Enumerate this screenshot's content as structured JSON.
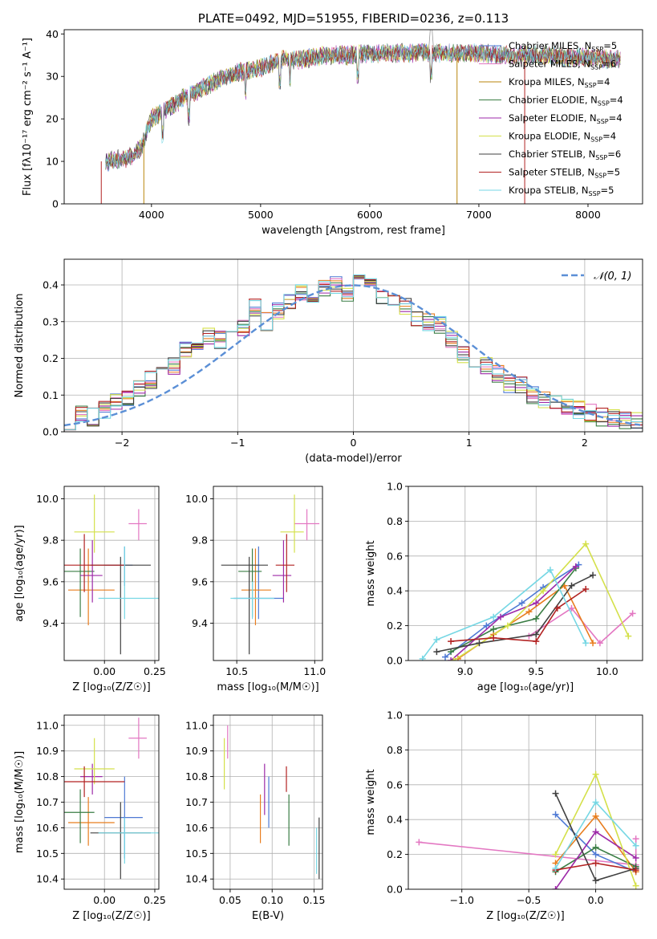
{
  "chart_data": [
    {
      "id": "spectrum",
      "type": "line",
      "title": "PLATE=0492, MJD=51955, FIBERID=0236, z=0.113",
      "xlabel": "wavelength [Angstrom, rest frame]",
      "ylabel": "Flux [fλ10⁻¹⁷ erg cm⁻² s⁻¹ A⁻¹]",
      "xlim": [
        3200,
        8500
      ],
      "ylim": [
        0,
        41
      ],
      "xticks": [
        "4000",
        "5000",
        "6000",
        "7000",
        "8000"
      ],
      "yticks": [
        "0",
        "10",
        "20",
        "30",
        "40"
      ],
      "grid": false,
      "legend_position": "top-right",
      "continuum": {
        "x": [
          3600,
          3800,
          3900,
          4000,
          4300,
          4600,
          4800,
          5000,
          5200,
          5400,
          5600,
          5800,
          6000,
          6200,
          6400,
          6600,
          6800,
          7000,
          7200,
          7400,
          7600,
          7800,
          8000,
          8200,
          8300
        ],
        "y": [
          10,
          11,
          13,
          20,
          25,
          29,
          31,
          32,
          34,
          34,
          35,
          35,
          35.5,
          35.5,
          35.5,
          35.5,
          35.5,
          35.5,
          35,
          35,
          35,
          34.5,
          34.5,
          34,
          34
        ]
      },
      "series": [
        {
          "name": "Chabrier MILES, N_SSP=5",
          "color": "#4e79d4"
        },
        {
          "name": "Salpeter MILES, N_SSP=6",
          "color": "#e377c2"
        },
        {
          "name": "Kroupa MILES, N_SSP=4",
          "color": "#b8860b"
        },
        {
          "name": "Chabrier ELODIE, N_SSP=4",
          "color": "#3a7d44"
        },
        {
          "name": "Salpeter ELODIE, N_SSP=4",
          "color": "#9d2aa8"
        },
        {
          "name": "Kroupa ELODIE, N_SSP=4",
          "color": "#d4e04a"
        },
        {
          "name": "Chabrier STELIB, N_SSP=6",
          "color": "#404040"
        },
        {
          "name": "Salpeter STELIB, N_SSP=5",
          "color": "#b22222"
        },
        {
          "name": "Kroupa STELIB, N_SSP=5",
          "color": "#76d7e4"
        }
      ]
    },
    {
      "id": "residuals",
      "type": "line",
      "xlabel": "(data-model)/error",
      "ylabel": "Normed distribution",
      "xlim": [
        -2.5,
        2.5
      ],
      "ylim": [
        0,
        0.47
      ],
      "xticks": [
        "−2",
        "−1",
        "0",
        "1",
        "2"
      ],
      "yticks": [
        "0.0",
        "0.1",
        "0.2",
        "0.3",
        "0.4"
      ],
      "grid": true,
      "legend_position": "top-right",
      "legend_label": "𝒩(0, 1)",
      "bin_width": 0.1,
      "sample_histogram": {
        "bin_centers": [
          -2.45,
          -2.35,
          -2.25,
          -2.15,
          -2.05,
          -1.95,
          -1.85,
          -1.75,
          -1.65,
          -1.55,
          -1.45,
          -1.35,
          -1.25,
          -1.15,
          -1.05,
          -0.95,
          -0.85,
          -0.75,
          -0.65,
          -0.55,
          -0.45,
          -0.35,
          -0.25,
          -0.15,
          -0.05,
          0.05,
          0.15,
          0.25,
          0.35,
          0.45,
          0.55,
          0.65,
          0.75,
          0.85,
          0.95,
          1.05,
          1.15,
          1.25,
          1.35,
          1.45,
          1.55,
          1.65,
          1.75,
          1.85,
          1.95,
          2.05,
          2.15,
          2.25,
          2.35,
          2.45
        ],
        "values": [
          0.03,
          0.05,
          0.04,
          0.06,
          0.08,
          0.09,
          0.12,
          0.14,
          0.16,
          0.18,
          0.22,
          0.22,
          0.26,
          0.25,
          0.27,
          0.28,
          0.34,
          0.3,
          0.33,
          0.35,
          0.38,
          0.36,
          0.39,
          0.4,
          0.38,
          0.42,
          0.4,
          0.37,
          0.36,
          0.34,
          0.31,
          0.3,
          0.29,
          0.25,
          0.21,
          0.2,
          0.18,
          0.16,
          0.13,
          0.13,
          0.1,
          0.09,
          0.08,
          0.07,
          0.06,
          0.05,
          0.04,
          0.04,
          0.03,
          0.03
        ]
      }
    },
    {
      "id": "age_vs_Z",
      "type": "scatter",
      "xlabel": "Z [log₁₀(Z/Z☉)]",
      "ylabel": "age  [log₁₀(age/yr)]",
      "xlim": [
        -0.2,
        0.27
      ],
      "ylim": [
        9.22,
        10.06
      ],
      "xticks": [
        "0.00",
        "0.25"
      ],
      "yticks": [
        "9.4",
        "9.6",
        "9.8",
        "10.0"
      ],
      "grid": true,
      "points": [
        {
          "x": 0.1,
          "y": 9.68,
          "ex": [
            0.0,
            0.14
          ],
          "ey": [
            9.58,
            9.77
          ],
          "color": "#4e79d4"
        },
        {
          "x": 0.17,
          "y": 9.88,
          "ex": [
            0.12,
            0.21
          ],
          "ey": [
            9.8,
            9.95
          ],
          "color": "#e377c2"
        },
        {
          "x": -0.08,
          "y": 9.56,
          "ex": [
            -0.18,
            0.05
          ],
          "ey": [
            9.39,
            9.76
          ],
          "color": "#e87d1e"
        },
        {
          "x": -0.12,
          "y": 9.65,
          "ex": [
            -0.22,
            -0.05
          ],
          "ey": [
            9.43,
            9.76
          ],
          "color": "#3a7d44"
        },
        {
          "x": -0.06,
          "y": 9.63,
          "ex": [
            -0.12,
            -0.01
          ],
          "ey": [
            9.5,
            9.8
          ],
          "color": "#9d2aa8"
        },
        {
          "x": -0.05,
          "y": 9.84,
          "ex": [
            -0.15,
            0.05
          ],
          "ey": [
            9.74,
            10.02
          ],
          "color": "#d4e04a"
        },
        {
          "x": 0.08,
          "y": 9.68,
          "ex": [
            -0.07,
            0.23
          ],
          "ey": [
            9.25,
            9.72
          ],
          "color": "#404040"
        },
        {
          "x": -0.1,
          "y": 9.68,
          "ex": [
            -0.22,
            0.1
          ],
          "ey": [
            9.55,
            9.83
          ],
          "color": "#b22222"
        },
        {
          "x": 0.1,
          "y": 9.52,
          "ex": [
            -0.03,
            0.28
          ],
          "ey": [
            9.42,
            9.77
          ],
          "color": "#76d7e4"
        }
      ]
    },
    {
      "id": "age_vs_mass",
      "type": "scatter",
      "xlabel": "mass [log₁₀(M/M☉)]",
      "ylabel": "",
      "xlim": [
        10.35,
        11.05
      ],
      "ylim": [
        9.22,
        10.06
      ],
      "xticks": [
        "10.5",
        "11.0"
      ],
      "yticks": [
        "9.4",
        "9.6",
        "9.8",
        "10.0"
      ],
      "grid": true,
      "points": [
        {
          "x": 10.64,
          "y": 9.52,
          "ex": [
            10.48,
            10.8
          ],
          "ey": [
            9.42,
            9.77
          ],
          "color": "#4e79d4"
        },
        {
          "x": 10.95,
          "y": 9.88,
          "ex": [
            10.87,
            11.03
          ],
          "ey": [
            9.8,
            9.95
          ],
          "color": "#e377c2"
        },
        {
          "x": 10.62,
          "y": 9.56,
          "ex": [
            10.53,
            10.72
          ],
          "ey": [
            9.39,
            9.76
          ],
          "color": "#e87d1e"
        },
        {
          "x": 10.6,
          "y": 9.65,
          "ex": [
            10.51,
            10.66
          ],
          "ey": [
            9.43,
            9.76
          ],
          "color": "#3a7d44"
        },
        {
          "x": 10.8,
          "y": 9.63,
          "ex": [
            10.73,
            10.85
          ],
          "ey": [
            9.5,
            9.8
          ],
          "color": "#9d2aa8"
        },
        {
          "x": 10.87,
          "y": 9.84,
          "ex": [
            10.78,
            10.93
          ],
          "ey": [
            9.74,
            10.02
          ],
          "color": "#d4e04a"
        },
        {
          "x": 10.58,
          "y": 9.68,
          "ex": [
            10.4,
            10.7
          ],
          "ey": [
            9.25,
            9.72
          ],
          "color": "#404040"
        },
        {
          "x": 10.82,
          "y": 9.68,
          "ex": [
            10.75,
            10.87
          ],
          "ey": [
            9.55,
            9.83
          ],
          "color": "#b22222"
        },
        {
          "x": 10.6,
          "y": 9.52,
          "ex": [
            10.46,
            10.74
          ],
          "ey": [
            9.42,
            9.6
          ],
          "color": "#76d7e4"
        }
      ]
    },
    {
      "id": "weight_vs_age",
      "type": "line",
      "xlabel": "age  [log₁₀(age/yr)]",
      "ylabel": "mass weight",
      "xlim": [
        8.6,
        10.25
      ],
      "ylim": [
        0,
        1
      ],
      "xticks": [
        "9.0",
        "9.5",
        "10.0"
      ],
      "yticks": [
        "0.0",
        "0.2",
        "0.4",
        "0.6",
        "0.8",
        "1.0"
      ],
      "grid": true,
      "series": [
        {
          "color": "#4e79d4",
          "x": [
            8.86,
            9.15,
            9.4,
            9.55,
            9.8
          ],
          "y": [
            0.02,
            0.2,
            0.33,
            0.42,
            0.55
          ]
        },
        {
          "color": "#e377c2",
          "x": [
            9.45,
            9.75,
            9.95,
            10.18
          ],
          "y": [
            0.14,
            0.3,
            0.1,
            0.27
          ]
        },
        {
          "color": "#e87d1e",
          "x": [
            8.95,
            9.2,
            9.45,
            9.7,
            9.9
          ],
          "y": [
            0.01,
            0.15,
            0.28,
            0.43,
            0.1
          ]
        },
        {
          "color": "#3a7d44",
          "x": [
            8.9,
            9.2,
            9.5,
            9.78
          ],
          "y": [
            0.05,
            0.18,
            0.24,
            0.53
          ]
        },
        {
          "color": "#9d2aa8",
          "x": [
            8.9,
            9.25,
            9.5,
            9.78
          ],
          "y": [
            0.0,
            0.25,
            0.33,
            0.54
          ]
        },
        {
          "color": "#d4e04a",
          "x": [
            8.92,
            9.3,
            9.55,
            9.85,
            10.15
          ],
          "y": [
            0.0,
            0.2,
            0.4,
            0.67,
            0.14
          ]
        },
        {
          "color": "#404040",
          "x": [
            8.8,
            9.1,
            9.5,
            9.75,
            9.9
          ],
          "y": [
            0.05,
            0.1,
            0.15,
            0.43,
            0.49
          ]
        },
        {
          "color": "#b22222",
          "x": [
            8.9,
            9.2,
            9.5,
            9.65,
            9.85
          ],
          "y": [
            0.11,
            0.13,
            0.11,
            0.3,
            0.41
          ]
        },
        {
          "color": "#76d7e4",
          "x": [
            8.7,
            8.8,
            9.2,
            9.6,
            9.85
          ],
          "y": [
            0.01,
            0.12,
            0.25,
            0.52,
            0.1
          ]
        }
      ]
    },
    {
      "id": "mass_vs_Z",
      "type": "scatter",
      "xlabel": "Z [log₁₀(Z/Z☉)]",
      "ylabel": "mass [log₁₀(M/M☉)]",
      "xlim": [
        -0.2,
        0.27
      ],
      "ylim": [
        10.36,
        11.04
      ],
      "xticks": [
        "0.00",
        "0.25"
      ],
      "yticks": [
        "10.4",
        "10.5",
        "10.6",
        "10.7",
        "10.8",
        "10.9",
        "11.0"
      ],
      "grid": true,
      "points": [
        {
          "x": 0.1,
          "y": 10.64,
          "ex": [
            0.0,
            0.19
          ],
          "ey": [
            10.48,
            10.8
          ],
          "color": "#4e79d4"
        },
        {
          "x": 0.17,
          "y": 10.95,
          "ex": [
            0.12,
            0.21
          ],
          "ey": [
            10.87,
            11.03
          ],
          "color": "#e377c2"
        },
        {
          "x": -0.08,
          "y": 10.62,
          "ex": [
            -0.18,
            0.05
          ],
          "ey": [
            10.53,
            10.72
          ],
          "color": "#e87d1e"
        },
        {
          "x": -0.12,
          "y": 10.66,
          "ex": [
            -0.22,
            -0.05
          ],
          "ey": [
            10.54,
            10.75
          ],
          "color": "#3a7d44"
        },
        {
          "x": -0.06,
          "y": 10.8,
          "ex": [
            -0.12,
            -0.01
          ],
          "ey": [
            10.73,
            10.85
          ],
          "color": "#9d2aa8"
        },
        {
          "x": -0.05,
          "y": 10.83,
          "ex": [
            -0.15,
            0.05
          ],
          "ey": [
            10.77,
            10.95
          ],
          "color": "#d4e04a"
        },
        {
          "x": 0.08,
          "y": 10.58,
          "ex": [
            -0.07,
            0.23
          ],
          "ey": [
            10.4,
            10.7
          ],
          "color": "#404040"
        },
        {
          "x": -0.1,
          "y": 10.78,
          "ex": [
            -0.22,
            0.1
          ],
          "ey": [
            10.72,
            10.84
          ],
          "color": "#b22222"
        },
        {
          "x": 0.1,
          "y": 10.58,
          "ex": [
            -0.03,
            0.28
          ],
          "ey": [
            10.46,
            10.64
          ],
          "color": "#76d7e4"
        }
      ]
    },
    {
      "id": "mass_vs_ebv",
      "type": "scatter",
      "xlabel": "E(B-V)",
      "ylabel": "",
      "xlim": [
        0.03,
        0.16
      ],
      "ylim": [
        10.36,
        11.04
      ],
      "xticks": [
        "0.05",
        "0.10",
        "0.15"
      ],
      "yticks": [
        "10.4",
        "10.5",
        "10.6",
        "10.7",
        "10.8",
        "10.9",
        "11.0"
      ],
      "grid": true,
      "points": [
        {
          "x": 0.096,
          "y": 10.7,
          "ey": [
            10.6,
            10.8
          ],
          "color": "#4e79d4"
        },
        {
          "x": 0.047,
          "y": 10.95,
          "ey": [
            10.87,
            11.0
          ],
          "color": "#e377c2"
        },
        {
          "x": 0.086,
          "y": 10.63,
          "ey": [
            10.54,
            10.73
          ],
          "color": "#e87d1e"
        },
        {
          "x": 0.12,
          "y": 10.62,
          "ey": [
            10.53,
            10.73
          ],
          "color": "#3a7d44"
        },
        {
          "x": 0.091,
          "y": 10.75,
          "ey": [
            10.65,
            10.85
          ],
          "color": "#9d2aa8"
        },
        {
          "x": 0.043,
          "y": 10.85,
          "ey": [
            10.75,
            10.95
          ],
          "color": "#d4e04a"
        },
        {
          "x": 0.156,
          "y": 10.5,
          "ey": [
            10.4,
            10.64
          ],
          "color": "#404040"
        },
        {
          "x": 0.117,
          "y": 10.8,
          "ey": [
            10.74,
            10.84
          ],
          "color": "#b22222"
        },
        {
          "x": 0.153,
          "y": 10.5,
          "ey": [
            10.42,
            10.6
          ],
          "color": "#76d7e4"
        }
      ]
    },
    {
      "id": "weight_vs_Z",
      "type": "line",
      "xlabel": "Z [log₁₀(Z/Z☉)]",
      "ylabel": "mass weight",
      "xlim": [
        -1.4,
        0.35
      ],
      "ylim": [
        0,
        1
      ],
      "xticks": [
        "−1.0",
        "−0.5",
        "0.0"
      ],
      "yticks": [
        "0.0",
        "0.2",
        "0.4",
        "0.6",
        "0.8",
        "1.0"
      ],
      "grid": true,
      "series": [
        {
          "color": "#e377c2",
          "x": [
            -1.32,
            0.3,
            0.3
          ],
          "y": [
            0.27,
            0.14,
            0.29
          ]
        },
        {
          "color": "#4e79d4",
          "x": [
            -0.3,
            0.0,
            0.3
          ],
          "y": [
            0.43,
            0.2,
            0.1
          ]
        },
        {
          "color": "#e87d1e",
          "x": [
            -0.3,
            0.0,
            0.3
          ],
          "y": [
            0.15,
            0.42,
            0.1
          ]
        },
        {
          "color": "#3a7d44",
          "x": [
            -0.3,
            0.0,
            0.3
          ],
          "y": [
            0.1,
            0.24,
            0.13
          ]
        },
        {
          "color": "#9d2aa8",
          "x": [
            -0.3,
            0.0,
            0.3
          ],
          "y": [
            0.0,
            0.33,
            0.18
          ]
        },
        {
          "color": "#d4e04a",
          "x": [
            -0.3,
            0.0,
            0.3
          ],
          "y": [
            0.2,
            0.66,
            0.02
          ]
        },
        {
          "color": "#404040",
          "x": [
            -0.3,
            0.0,
            0.3
          ],
          "y": [
            0.55,
            0.05,
            0.12
          ]
        },
        {
          "color": "#b22222",
          "x": [
            -0.3,
            0.0,
            0.3
          ],
          "y": [
            0.11,
            0.15,
            0.11
          ]
        },
        {
          "color": "#76d7e4",
          "x": [
            -0.3,
            0.0,
            0.3
          ],
          "y": [
            0.12,
            0.5,
            0.25
          ]
        }
      ]
    }
  ]
}
